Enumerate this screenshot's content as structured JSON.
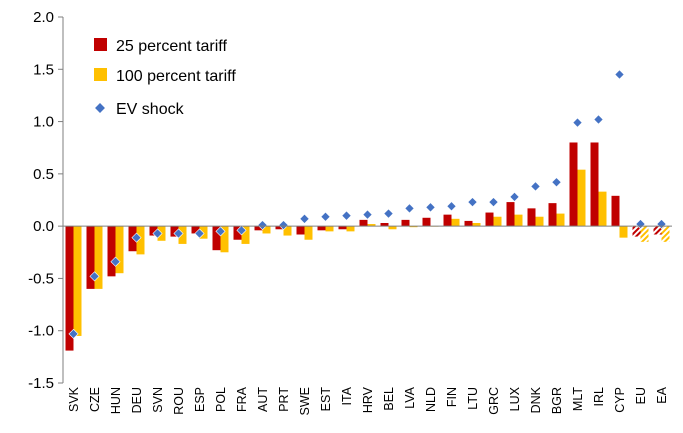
{
  "chart_data": {
    "type": "bar",
    "title": "",
    "xlabel": "",
    "ylabel": "",
    "ylim": [
      -1.5,
      2.0
    ],
    "yticks": [
      "2.0",
      "1.5",
      "1.0",
      "0.5",
      "0.0",
      "-0.5",
      "-1.0",
      "-1.5"
    ],
    "grid": false,
    "legend_position": "top-left",
    "categories": [
      "SVK",
      "CZE",
      "HUN",
      "DEU",
      "SVN",
      "ROU",
      "ESP",
      "POL",
      "FRA",
      "AUT",
      "PRT",
      "SWE",
      "EST",
      "ITA",
      "HRV",
      "BEL",
      "LVA",
      "NLD",
      "FIN",
      "LTU",
      "GRC",
      "LUX",
      "DNK",
      "BGR",
      "MLT",
      "IRL",
      "CYP",
      "EU",
      "EA"
    ],
    "hatched_categories": [
      "EU",
      "EA"
    ],
    "series": [
      {
        "name": "25 percent tariff",
        "kind": "bar",
        "color": "#C00000",
        "values": [
          -1.19,
          -0.6,
          -0.48,
          -0.24,
          -0.09,
          -0.1,
          -0.07,
          -0.23,
          -0.13,
          -0.04,
          -0.03,
          -0.08,
          -0.04,
          -0.03,
          0.06,
          0.03,
          0.06,
          0.08,
          0.11,
          0.05,
          0.13,
          0.23,
          0.17,
          0.22,
          0.8,
          0.8,
          0.29,
          -0.1,
          -0.08
        ]
      },
      {
        "name": "100 percent tariff",
        "kind": "bar",
        "color": "#FFC000",
        "values": [
          -1.05,
          -0.6,
          -0.45,
          -0.27,
          -0.14,
          -0.17,
          -0.12,
          -0.25,
          -0.17,
          -0.07,
          -0.09,
          -0.13,
          -0.05,
          -0.05,
          0.02,
          -0.03,
          -0.01,
          0.0,
          0.07,
          0.03,
          0.09,
          0.11,
          0.09,
          0.12,
          0.54,
          0.33,
          -0.11,
          -0.15,
          -0.15
        ]
      },
      {
        "name": "EV shock",
        "kind": "marker",
        "color": "#4472C4",
        "values": [
          -1.03,
          -0.48,
          -0.34,
          -0.11,
          -0.07,
          -0.07,
          -0.07,
          -0.05,
          -0.04,
          0.01,
          0.01,
          0.07,
          0.09,
          0.1,
          0.11,
          0.12,
          0.17,
          0.18,
          0.19,
          0.23,
          0.23,
          0.28,
          0.38,
          0.42,
          0.99,
          1.02,
          1.45,
          0.02,
          0.02
        ]
      }
    ]
  }
}
